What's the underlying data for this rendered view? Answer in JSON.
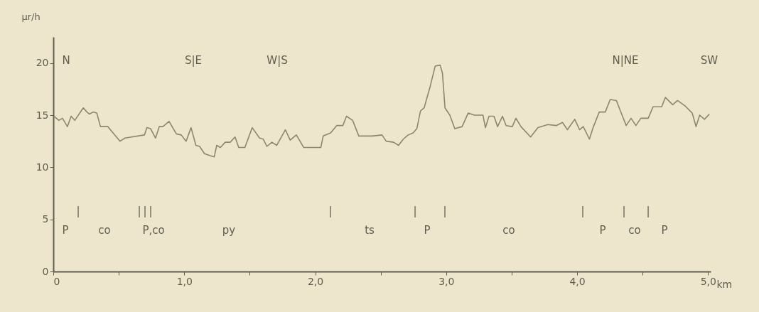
{
  "chart_data": {
    "type": "line",
    "xlabel": "km",
    "ylabel": "µr/h",
    "x": [
      0.005,
      0.042,
      0.07,
      0.108,
      0.136,
      0.164,
      0.229,
      0.257,
      0.276,
      0.304,
      0.332,
      0.36,
      0.416,
      0.463,
      0.51,
      0.547,
      0.696,
      0.715,
      0.743,
      0.781,
      0.809,
      0.837,
      0.884,
      0.94,
      0.977,
      1.014,
      1.052,
      1.089,
      1.117,
      1.155,
      1.201,
      1.229,
      1.248,
      1.276,
      1.313,
      1.351,
      1.388,
      1.416,
      1.463,
      1.519,
      1.575,
      1.603,
      1.631,
      1.669,
      1.706,
      1.772,
      1.809,
      1.856,
      1.912,
      2.043,
      2.061,
      2.118,
      2.164,
      2.211,
      2.239,
      2.286,
      2.333,
      2.436,
      2.51,
      2.542,
      2.598,
      2.636,
      2.673,
      2.71,
      2.748,
      2.776,
      2.804,
      2.832,
      2.879,
      2.916,
      2.954,
      2.972,
      2.991,
      3.028,
      3.066,
      3.122,
      3.168,
      3.215,
      3.281,
      3.3,
      3.327,
      3.365,
      3.393,
      3.43,
      3.458,
      3.505,
      3.533,
      3.571,
      3.645,
      3.701,
      3.776,
      3.841,
      3.888,
      3.926,
      3.982,
      4.019,
      4.047,
      4.094,
      4.122,
      4.169,
      4.215,
      4.253,
      4.3,
      4.337,
      4.375,
      4.412,
      4.449,
      4.487,
      4.543,
      4.58,
      4.646,
      4.674,
      4.73,
      4.767,
      4.823,
      4.879,
      4.908,
      4.936,
      4.973,
      5.01
    ],
    "series": [
      {
        "color": "#8a8670",
        "values": [
          14.9,
          14.5,
          14.7,
          13.9,
          14.9,
          14.5,
          15.7,
          15.3,
          15.1,
          15.3,
          15.2,
          13.9,
          13.9,
          13.2,
          12.5,
          12.8,
          13.1,
          13.8,
          13.7,
          12.8,
          13.9,
          13.9,
          14.4,
          13.2,
          13.1,
          12.5,
          13.8,
          12.1,
          12.0,
          11.3,
          11.1,
          11.0,
          12.1,
          11.9,
          12.4,
          12.4,
          12.9,
          11.9,
          11.9,
          13.8,
          12.8,
          12.7,
          12.0,
          12.4,
          12.1,
          13.6,
          12.6,
          13.1,
          11.9,
          11.9,
          13.0,
          13.3,
          14.0,
          14.0,
          14.9,
          14.5,
          13.0,
          13.0,
          13.1,
          12.5,
          12.4,
          12.1,
          12.7,
          13.1,
          13.3,
          13.7,
          15.4,
          15.7,
          17.8,
          19.7,
          19.8,
          19.0,
          15.7,
          15.0,
          13.7,
          13.9,
          15.2,
          15.0,
          15.0,
          13.8,
          14.9,
          14.9,
          13.9,
          14.9,
          14.0,
          13.9,
          14.7,
          13.9,
          12.9,
          13.8,
          14.1,
          14.0,
          14.3,
          13.6,
          14.6,
          13.6,
          13.9,
          12.7,
          13.8,
          15.3,
          15.3,
          16.5,
          16.4,
          15.2,
          14.0,
          14.7,
          14.0,
          14.7,
          14.7,
          15.8,
          15.8,
          16.7,
          16.0,
          16.4,
          15.9,
          15.2,
          13.9,
          15.0,
          14.6,
          15.1
        ]
      }
    ],
    "xlim": [
      0,
      5.02
    ],
    "ylim": [
      0,
      22.5
    ],
    "xticks": [
      0,
      {
        "value": 0.5,
        "label": null
      },
      {
        "value": 1,
        "label": "1,0"
      },
      {
        "value": 1.5,
        "label": null
      },
      {
        "value": 2,
        "label": "2,0"
      },
      {
        "value": 2.5,
        "label": null
      },
      {
        "value": 3,
        "label": "3,0"
      },
      {
        "value": 3.5,
        "label": null
      },
      {
        "value": 4,
        "label": "4,0"
      },
      {
        "value": 4.5,
        "label": null
      },
      {
        "value": 5,
        "label": "5,0"
      }
    ],
    "yticks": [
      0,
      5,
      10,
      15,
      20
    ],
    "grid": false,
    "marker": "none",
    "line_style": "solid",
    "annotations": [
      "N",
      "S|E",
      "W|S",
      "N|NE",
      "SW",
      "|",
      "|",
      "|",
      "|",
      "|",
      "|",
      "|",
      "|",
      "|",
      "|",
      "P",
      "co",
      "P,co",
      "py",
      "ts",
      "P",
      "co",
      "P",
      "co",
      "P"
    ]
  }
}
